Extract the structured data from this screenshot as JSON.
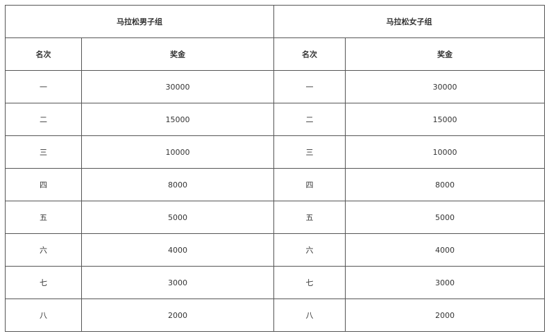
{
  "groups": [
    "马拉松男子组",
    "马拉松女子组"
  ],
  "headers": {
    "rank": "名次",
    "prize": "奖金"
  },
  "rows": [
    {
      "rank": "一",
      "prize": "30000"
    },
    {
      "rank": "二",
      "prize": "15000"
    },
    {
      "rank": "三",
      "prize": "10000"
    },
    {
      "rank": "四",
      "prize": "8000"
    },
    {
      "rank": "五",
      "prize": "5000"
    },
    {
      "rank": "六",
      "prize": "4000"
    },
    {
      "rank": "七",
      "prize": "3000"
    },
    {
      "rank": "八",
      "prize": "2000"
    }
  ]
}
